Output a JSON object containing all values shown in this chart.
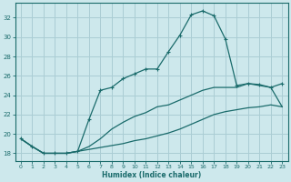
{
  "xlabel": "Humidex (Indice chaleur)",
  "background_color": "#cde8ec",
  "grid_color": "#aacdd4",
  "line_color": "#1a6b6b",
  "x_ticks": [
    0,
    1,
    2,
    3,
    4,
    5,
    6,
    7,
    8,
    9,
    10,
    11,
    12,
    13,
    14,
    15,
    16,
    17,
    18,
    19,
    20,
    21,
    22,
    23
  ],
  "y_ticks": [
    18,
    20,
    22,
    24,
    26,
    28,
    30,
    32
  ],
  "ylim": [
    17.2,
    33.5
  ],
  "xlim": [
    -0.5,
    23.5
  ],
  "series1_x": [
    0,
    1,
    2,
    3,
    4,
    5,
    6,
    7,
    8,
    9,
    10,
    11,
    12,
    13,
    14,
    15,
    16,
    17,
    18,
    19,
    20,
    21,
    22,
    23
  ],
  "series1_y": [
    19.5,
    18.7,
    18.0,
    18.0,
    18.0,
    18.2,
    21.5,
    24.5,
    24.8,
    25.7,
    26.2,
    26.7,
    26.7,
    28.5,
    30.2,
    32.3,
    32.7,
    32.2,
    29.8,
    25.0,
    25.2,
    25.1,
    24.8,
    25.2
  ],
  "series2_x": [
    0,
    1,
    2,
    3,
    4,
    5,
    6,
    7,
    8,
    9,
    10,
    11,
    12,
    13,
    14,
    15,
    16,
    17,
    18,
    19,
    20,
    21,
    22,
    23
  ],
  "series2_y": [
    19.5,
    18.7,
    18.0,
    18.0,
    18.0,
    18.2,
    18.7,
    19.5,
    20.5,
    21.2,
    21.8,
    22.2,
    22.8,
    23.0,
    23.5,
    24.0,
    24.5,
    24.8,
    24.8,
    24.8,
    25.2,
    25.0,
    24.8,
    22.8
  ],
  "series3_x": [
    0,
    1,
    2,
    3,
    4,
    5,
    6,
    7,
    8,
    9,
    10,
    11,
    12,
    13,
    14,
    15,
    16,
    17,
    18,
    19,
    20,
    21,
    22,
    23
  ],
  "series3_y": [
    19.5,
    18.7,
    18.0,
    18.0,
    18.0,
    18.2,
    18.4,
    18.6,
    18.8,
    19.0,
    19.3,
    19.5,
    19.8,
    20.1,
    20.5,
    21.0,
    21.5,
    22.0,
    22.3,
    22.5,
    22.7,
    22.8,
    23.0,
    22.8
  ]
}
